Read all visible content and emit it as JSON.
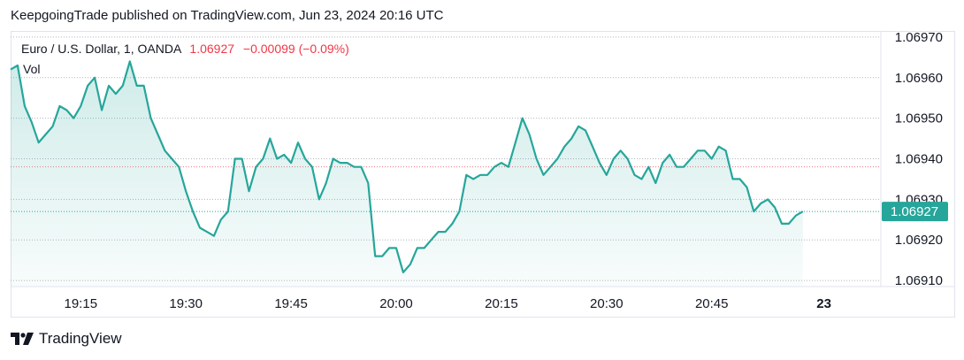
{
  "header": {
    "publisher_line": "KeepgoingTrade published on TradingView.com, Jun 23, 2024 20:16 UTC"
  },
  "legend": {
    "symbol": "Euro / U.S. Dollar, 1, OANDA",
    "last": "1.06927",
    "change": "−0.00099 (−0.09%)",
    "volume_label": "Vol"
  },
  "footer": {
    "brand": "TradingView"
  },
  "colors": {
    "line": "#26a69a",
    "down": "#f23645",
    "price_tag": "#26a69a"
  },
  "chart_data": {
    "type": "area",
    "y_ticks": [
      "1.06910",
      "1.06920",
      "1.06930",
      "1.06940",
      "1.06950",
      "1.06960",
      "1.06970"
    ],
    "x_ticks": [
      {
        "label": "19:15",
        "t": 10
      },
      {
        "label": "19:30",
        "t": 25
      },
      {
        "label": "19:45",
        "t": 40
      },
      {
        "label": "20:00",
        "t": 55
      },
      {
        "label": "20:15",
        "t": 70
      },
      {
        "label": "20:30",
        "t": 85
      },
      {
        "label": "20:45",
        "t": 100
      },
      {
        "label": "23",
        "t": 116,
        "bold": true
      }
    ],
    "ylim": [
      1.069085,
      1.069715
    ],
    "xlim": [
      0,
      124
    ],
    "last_price": 1.06927,
    "last_price_label": "1.06927",
    "series": [
      {
        "values": [
          [
            0,
            1.06962
          ],
          [
            1,
            1.06963
          ],
          [
            2,
            1.06953
          ],
          [
            3,
            1.06949
          ],
          [
            4,
            1.06944
          ],
          [
            5,
            1.06946
          ],
          [
            6,
            1.06948
          ],
          [
            7,
            1.06953
          ],
          [
            8,
            1.06952
          ],
          [
            9,
            1.0695
          ],
          [
            10,
            1.06953
          ],
          [
            11,
            1.06958
          ],
          [
            12,
            1.0696
          ],
          [
            13,
            1.06952
          ],
          [
            14,
            1.06958
          ],
          [
            15,
            1.06956
          ],
          [
            16,
            1.06958
          ],
          [
            17,
            1.06964
          ],
          [
            18,
            1.06958
          ],
          [
            19,
            1.06958
          ],
          [
            20,
            1.0695
          ],
          [
            21,
            1.06946
          ],
          [
            22,
            1.06942
          ],
          [
            23,
            1.0694
          ],
          [
            24,
            1.06938
          ],
          [
            25,
            1.06932
          ],
          [
            26,
            1.06927
          ],
          [
            27,
            1.06923
          ],
          [
            28,
            1.06922
          ],
          [
            29,
            1.06921
          ],
          [
            30,
            1.06925
          ],
          [
            31,
            1.06927
          ],
          [
            32,
            1.0694
          ],
          [
            33,
            1.0694
          ],
          [
            34,
            1.06932
          ],
          [
            35,
            1.06938
          ],
          [
            36,
            1.0694
          ],
          [
            37,
            1.06945
          ],
          [
            38,
            1.0694
          ],
          [
            39,
            1.06941
          ],
          [
            40,
            1.06939
          ],
          [
            41,
            1.06944
          ],
          [
            42,
            1.0694
          ],
          [
            43,
            1.06938
          ],
          [
            44,
            1.0693
          ],
          [
            45,
            1.06934
          ],
          [
            46,
            1.0694
          ],
          [
            47,
            1.06939
          ],
          [
            48,
            1.06939
          ],
          [
            49,
            1.06938
          ],
          [
            50,
            1.06938
          ],
          [
            51,
            1.06934
          ],
          [
            52,
            1.06916
          ],
          [
            53,
            1.06916
          ],
          [
            54,
            1.06918
          ],
          [
            55,
            1.06918
          ],
          [
            56,
            1.06912
          ],
          [
            57,
            1.06914
          ],
          [
            58,
            1.06918
          ],
          [
            59,
            1.06918
          ],
          [
            60,
            1.0692
          ],
          [
            61,
            1.06922
          ],
          [
            62,
            1.06922
          ],
          [
            63,
            1.06924
          ],
          [
            64,
            1.06927
          ],
          [
            65,
            1.06936
          ],
          [
            66,
            1.06935
          ],
          [
            67,
            1.06936
          ],
          [
            68,
            1.06936
          ],
          [
            69,
            1.06938
          ],
          [
            70,
            1.06939
          ],
          [
            71,
            1.06938
          ],
          [
            72,
            1.06944
          ],
          [
            73,
            1.0695
          ],
          [
            74,
            1.06946
          ],
          [
            75,
            1.0694
          ],
          [
            76,
            1.06936
          ],
          [
            77,
            1.06938
          ],
          [
            78,
            1.0694
          ],
          [
            79,
            1.06943
          ],
          [
            80,
            1.06945
          ],
          [
            81,
            1.06948
          ],
          [
            82,
            1.06947
          ],
          [
            83,
            1.06943
          ],
          [
            84,
            1.06939
          ],
          [
            85,
            1.06936
          ],
          [
            86,
            1.0694
          ],
          [
            87,
            1.06942
          ],
          [
            88,
            1.0694
          ],
          [
            89,
            1.06936
          ],
          [
            90,
            1.06935
          ],
          [
            91,
            1.06938
          ],
          [
            92,
            1.06934
          ],
          [
            93,
            1.06939
          ],
          [
            94,
            1.06941
          ],
          [
            95,
            1.06938
          ],
          [
            96,
            1.06938
          ],
          [
            97,
            1.0694
          ],
          [
            98,
            1.06942
          ],
          [
            99,
            1.06942
          ],
          [
            100,
            1.0694
          ],
          [
            101,
            1.06943
          ],
          [
            102,
            1.06942
          ],
          [
            103,
            1.06935
          ],
          [
            104,
            1.06935
          ],
          [
            105,
            1.06933
          ],
          [
            106,
            1.06927
          ],
          [
            107,
            1.06929
          ],
          [
            108,
            1.0693
          ],
          [
            109,
            1.06928
          ],
          [
            110,
            1.06924
          ],
          [
            111,
            1.06924
          ],
          [
            112,
            1.06926
          ],
          [
            113,
            1.06927
          ]
        ]
      }
    ]
  }
}
